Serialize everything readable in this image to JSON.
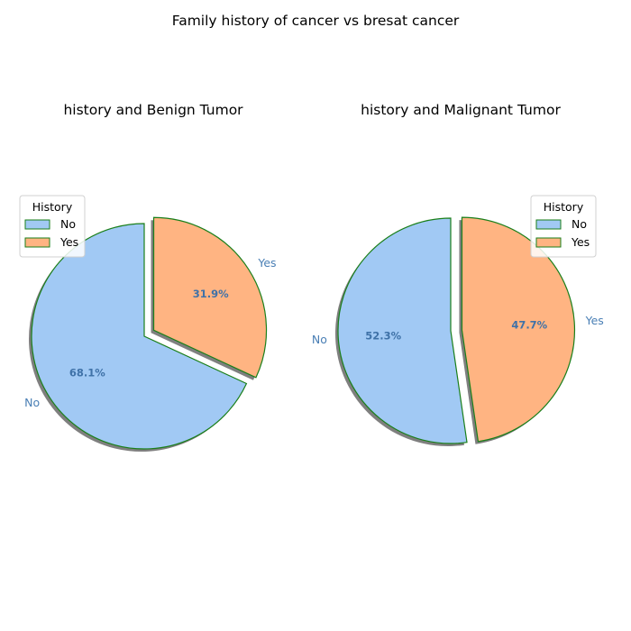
{
  "suptitle": "Family history of cancer vs bresat cancer",
  "colors": {
    "No": "#a1c9f4",
    "Yes": "#ffb482",
    "edge": "#1a7f1a",
    "shadow": "#7f7f7f",
    "label": "#4a7fb5",
    "pct": "#3f72a8"
  },
  "chart_data": [
    {
      "type": "pie",
      "title": "history and Benign Tumor",
      "labels": [
        "No",
        "Yes"
      ],
      "values": [
        68.1,
        31.9
      ],
      "value_labels": [
        "68.1%",
        "31.9%"
      ],
      "explode": [
        0,
        0.1
      ],
      "shadow": true,
      "legend": {
        "title": "History",
        "entries": [
          "No",
          "Yes"
        ],
        "loc": "upper-left"
      }
    },
    {
      "type": "pie",
      "title": "history and Malignant Tumor",
      "labels": [
        "No",
        "Yes"
      ],
      "values": [
        52.3,
        47.7
      ],
      "value_labels": [
        "52.3%",
        "47.7%"
      ],
      "explode": [
        0,
        0.1
      ],
      "shadow": true,
      "legend": {
        "title": "History",
        "entries": [
          "No",
          "Yes"
        ],
        "loc": "upper-right"
      }
    }
  ]
}
